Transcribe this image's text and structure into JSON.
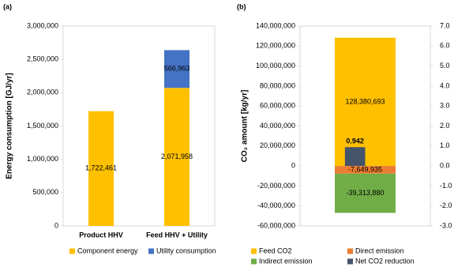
{
  "chart_data": [
    {
      "type": "bar",
      "stacked": true,
      "panel_label": "(a)",
      "y_label": "Energy consumption [GJ/yr]",
      "categories": [
        "Product HHV",
        "Feed HHV + Utility"
      ],
      "series": [
        {
          "name": "Component energy",
          "color": "#FFC000",
          "values": [
            1722461,
            2071958
          ],
          "value_labels": [
            "1,722,461",
            "2,071,958"
          ]
        },
        {
          "name": "Utility consumption",
          "color": "#4472C4",
          "values": [
            null,
            566963
          ],
          "value_labels": [
            null,
            "566,963"
          ]
        }
      ],
      "ylim": [
        0,
        3000000
      ],
      "yticks": [
        0,
        {
          "value": 500000,
          "label": "500,000"
        },
        {
          "value": 1000000,
          "label": "1,000,000"
        },
        {
          "value": 1500000,
          "label": "1,500,000"
        },
        {
          "value": 2000000,
          "label": "2,000,000"
        },
        {
          "value": 2500000,
          "label": "2,500,000"
        },
        {
          "value": 3000000,
          "label": "3,000,000"
        }
      ]
    },
    {
      "type": "bar",
      "stacked": true,
      "panel_label": "(b)",
      "y_label": "CO₂ amount [kg/yr]",
      "categories": [
        null
      ],
      "series": [
        {
          "name": "Feed CO2",
          "color": "#FFC000",
          "values": [
            128380693
          ],
          "value_labels": [
            "128,380,693"
          ]
        },
        {
          "name": "Direct emission",
          "color": "#ED7D31",
          "values": [
            -7649935
          ],
          "value_labels": [
            "-7,649,935"
          ]
        },
        {
          "name": "Indirect emission",
          "color": "#70AD47",
          "values": [
            -39313880
          ],
          "value_labels": [
            "-39,313,880"
          ]
        },
        {
          "name": "Net CO2 reduction",
          "color": "#44546A",
          "axis": "y2",
          "values": [
            0.942
          ]
        }
      ],
      "ylim": [
        -60000000,
        140000000
      ],
      "yticks": [
        {
          "value": -60000000,
          "label": "-60,000,000"
        },
        {
          "value": -40000000,
          "label": "-40,000,000"
        },
        {
          "value": -20000000,
          "label": "-20,000,000"
        },
        0,
        {
          "value": 20000000,
          "label": "20,000,000"
        },
        {
          "value": 40000000,
          "label": "40,000,000"
        },
        {
          "value": 60000000,
          "label": "60,000,000"
        },
        {
          "value": 80000000,
          "label": "80,000,000"
        },
        {
          "value": 100000000,
          "label": "100,000,000"
        },
        {
          "value": 120000000,
          "label": "120,000,000"
        },
        {
          "value": 140000000,
          "label": "140,000,000"
        }
      ],
      "y2lim": [
        -3.0,
        7.0
      ],
      "y2ticks": [
        {
          "value": -3,
          "label": "-3.0"
        },
        {
          "value": -2,
          "label": "-2.0"
        },
        {
          "value": -1,
          "label": "-1.0"
        },
        {
          "value": 0,
          "label": "0.0"
        },
        {
          "value": 1,
          "label": "1.0"
        },
        {
          "value": 2,
          "label": "2.0"
        },
        {
          "value": 3,
          "label": "3.0"
        },
        {
          "value": 4,
          "label": "4.0"
        },
        {
          "value": 5,
          "label": "5.0"
        },
        {
          "value": 6,
          "label": "6.0"
        },
        {
          "value": 7,
          "label": "7.0"
        }
      ]
    }
  ]
}
